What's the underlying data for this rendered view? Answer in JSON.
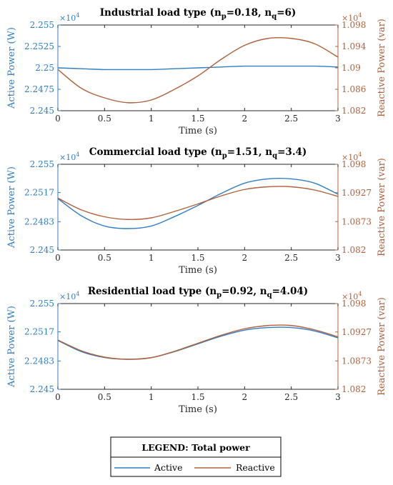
{
  "colors": {
    "active": "#2f7dc4",
    "reactive": "#b0603a",
    "axis": "#262626"
  },
  "legend": {
    "title": "LEGEND: Total power",
    "entries": [
      {
        "series": "active",
        "label": "Active"
      },
      {
        "series": "reactive",
        "label": "Reactive"
      }
    ]
  },
  "chart_data": [
    {
      "type": "line",
      "title": "Industrial load type (n_p=0.18, n_q=6)",
      "title_parts": {
        "lead": "Industrial load type (n",
        "sub1": "p",
        "mid": "=0.18, n",
        "sub2": "q",
        "tail": "=6)"
      },
      "xlabel": "Time (s)",
      "ylabel_left": "Active Power (W)",
      "ylabel_right": "Reactive Power (var)",
      "left_multiplier": {
        "base": "×10",
        "exp": "4"
      },
      "right_multiplier": {
        "base": "×10",
        "exp": "4"
      },
      "xlim": [
        0,
        3
      ],
      "x_ticks": [
        "0",
        "0.5",
        "1",
        "1.5",
        "2",
        "2.5",
        "3"
      ],
      "ylim_left": [
        2.245,
        2.255
      ],
      "y_left_ticks": [
        "2.245",
        "2.2475",
        "2.25",
        "2.2525",
        "2.255"
      ],
      "ylim_right": [
        1.082,
        1.098
      ],
      "y_right_ticks": [
        "1.082",
        "1.086",
        "1.09",
        "1.094",
        "1.098"
      ],
      "grid": false,
      "series": [
        {
          "name": "Active",
          "axis": "left",
          "x": [
            0,
            0.25,
            0.5,
            0.75,
            1.0,
            1.25,
            1.5,
            1.75,
            2.0,
            2.25,
            2.5,
            2.75,
            3.0
          ],
          "values": [
            2.25,
            2.2499,
            2.2498,
            2.2498,
            2.2498,
            2.2499,
            2.25,
            2.2501,
            2.2502,
            2.2502,
            2.2502,
            2.2502,
            2.2501
          ]
        },
        {
          "name": "Reactive",
          "axis": "right",
          "x": [
            0,
            0.25,
            0.5,
            0.75,
            1.0,
            1.25,
            1.5,
            1.75,
            2.0,
            2.25,
            2.5,
            2.75,
            3.0
          ],
          "values": [
            1.0897,
            1.0862,
            1.0844,
            1.0835,
            1.084,
            1.086,
            1.0885,
            1.0916,
            1.0942,
            1.0955,
            1.0955,
            1.0945,
            1.092
          ]
        }
      ]
    },
    {
      "type": "line",
      "title": "Commercial load type (n_p=1.51, n_q=3.4)",
      "title_parts": {
        "lead": "Commercial load type (n",
        "sub1": "p",
        "mid": "=1.51, n",
        "sub2": "q",
        "tail": "=3.4)"
      },
      "xlabel": "Time (s)",
      "ylabel_left": "Active Power (W)",
      "ylabel_right": "Reactive Power (var)",
      "left_multiplier": {
        "base": "×10",
        "exp": "4"
      },
      "right_multiplier": {
        "base": "×10",
        "exp": "4"
      },
      "xlim": [
        0,
        3
      ],
      "x_ticks": [
        "0",
        "0.5",
        "1",
        "1.5",
        "2",
        "2.5",
        "3"
      ],
      "ylim_left": [
        2.245,
        2.255
      ],
      "y_left_ticks": [
        "2.245",
        "2.2483",
        "2.2517",
        "2.255"
      ],
      "ylim_right": [
        1.082,
        1.098
      ],
      "y_right_ticks": [
        "1.082",
        "1.0873",
        "1.0927",
        "1.098"
      ],
      "grid": false,
      "series": [
        {
          "name": "Active",
          "axis": "left",
          "x": [
            0,
            0.25,
            0.5,
            0.75,
            1.0,
            1.25,
            1.5,
            1.75,
            2.0,
            2.25,
            2.5,
            2.75,
            3.0
          ],
          "values": [
            2.251,
            2.249,
            2.2478,
            2.2475,
            2.2478,
            2.2489,
            2.2502,
            2.2516,
            2.2528,
            2.2533,
            2.2533,
            2.2528,
            2.2515
          ]
        },
        {
          "name": "Reactive",
          "axis": "right",
          "x": [
            0,
            0.25,
            0.5,
            0.75,
            1.0,
            1.25,
            1.5,
            1.75,
            2.0,
            2.25,
            2.5,
            2.75,
            3.0
          ],
          "values": [
            1.0917,
            1.0895,
            1.0882,
            1.0877,
            1.088,
            1.0892,
            1.0906,
            1.0921,
            1.0933,
            1.0938,
            1.0938,
            1.0932,
            1.092
          ]
        }
      ]
    },
    {
      "type": "line",
      "title": "Residential load type (n_p=0.92, n_q=4.04)",
      "title_parts": {
        "lead": "Residential load type (n",
        "sub1": "p",
        "mid": "=0.92, n",
        "sub2": "q",
        "tail": "=4.04)"
      },
      "xlabel": "Time (s)",
      "ylabel_left": "Active Power (W)",
      "ylabel_right": "Reactive Power (var)",
      "left_multiplier": {
        "base": "×10",
        "exp": "4"
      },
      "right_multiplier": {
        "base": "×10",
        "exp": "4"
      },
      "xlim": [
        0,
        3
      ],
      "x_ticks": [
        "0",
        "0.5",
        "1",
        "1.5",
        "2",
        "2.5",
        "3"
      ],
      "ylim_left": [
        2.245,
        2.255
      ],
      "y_left_ticks": [
        "2.245",
        "2.2483",
        "2.2517",
        "2.255"
      ],
      "ylim_right": [
        1.082,
        1.098
      ],
      "y_right_ticks": [
        "1.082",
        "1.0873",
        "1.0927",
        "1.098"
      ],
      "grid": false,
      "series": [
        {
          "name": "Active",
          "axis": "left",
          "x": [
            0,
            0.25,
            0.5,
            0.75,
            1.0,
            1.25,
            1.5,
            1.75,
            2.0,
            2.25,
            2.5,
            2.75,
            3.0
          ],
          "values": [
            2.2507,
            2.2494,
            2.2487,
            2.2485,
            2.2487,
            2.2494,
            2.2503,
            2.2512,
            2.2519,
            2.2522,
            2.2522,
            2.2518,
            2.251
          ]
        },
        {
          "name": "Reactive",
          "axis": "right",
          "x": [
            0,
            0.25,
            0.5,
            0.75,
            1.0,
            1.25,
            1.5,
            1.75,
            2.0,
            2.25,
            2.5,
            2.75,
            3.0
          ],
          "values": [
            1.0912,
            1.0892,
            1.088,
            1.0876,
            1.0879,
            1.0891,
            1.0906,
            1.0921,
            1.0933,
            1.0939,
            1.0939,
            1.0931,
            1.0918
          ]
        }
      ]
    }
  ]
}
